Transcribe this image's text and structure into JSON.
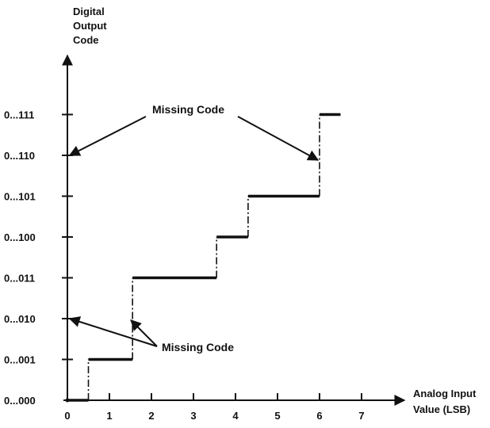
{
  "chart_data": {
    "type": "line",
    "y_axis_title": [
      "Digital",
      "Output",
      "Code"
    ],
    "x_axis_title": [
      "Analog Input",
      "Value (LSB)"
    ],
    "x_ticks": [
      "0",
      "1",
      "2",
      "3",
      "4",
      "5",
      "6",
      "7"
    ],
    "y_ticks": [
      "0...000",
      "0...001",
      "0...010",
      "0...011",
      "0...100",
      "0...101",
      "0...110",
      "0...111"
    ],
    "xlim": [
      0,
      7.6
    ],
    "ylim": [
      0,
      8.7
    ],
    "steps": [
      {
        "code": 0,
        "x_start": 0,
        "x_end": 0.5
      },
      {
        "code": 1,
        "x_start": 0.5,
        "x_end": 1.55
      },
      {
        "code": 3,
        "x_start": 1.55,
        "x_end": 3.55
      },
      {
        "code": 4,
        "x_start": 3.55,
        "x_end": 4.3
      },
      {
        "code": 5,
        "x_start": 4.3,
        "x_end": 6.0
      },
      {
        "code": 7,
        "x_start": 6.0,
        "x_end": 6.5
      }
    ],
    "annotations": [
      {
        "text": "Missing Code",
        "points_to": [
          {
            "x": 0,
            "y": 6
          },
          {
            "x": 6.0,
            "y": 6
          }
        ]
      },
      {
        "text": "Missing Code",
        "points_to": [
          {
            "x": 0,
            "y": 2
          },
          {
            "x": 1.55,
            "y": 2
          }
        ]
      }
    ]
  }
}
